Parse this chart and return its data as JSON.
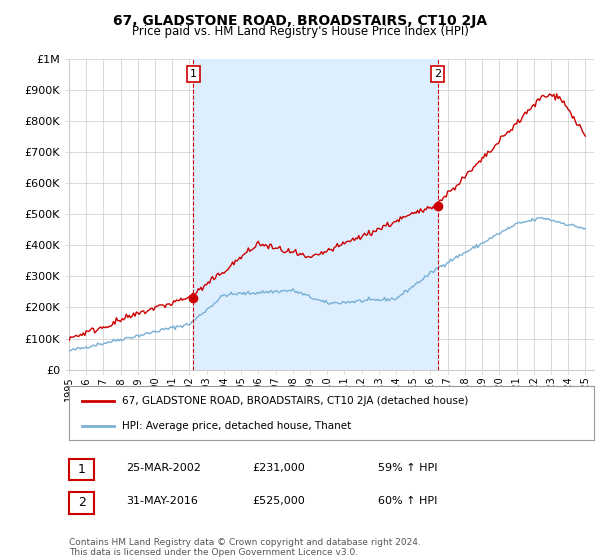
{
  "title": "67, GLADSTONE ROAD, BROADSTAIRS, CT10 2JA",
  "subtitle": "Price paid vs. HM Land Registry's House Price Index (HPI)",
  "x_start_year": 1995,
  "x_end_year": 2025,
  "ylim": [
    0,
    1000000
  ],
  "yticks": [
    0,
    100000,
    200000,
    300000,
    400000,
    500000,
    600000,
    700000,
    800000,
    900000,
    1000000
  ],
  "ytick_labels": [
    "£0",
    "£100K",
    "£200K",
    "£300K",
    "£400K",
    "£500K",
    "£600K",
    "£700K",
    "£800K",
    "£900K",
    "£1M"
  ],
  "sale1_date": 2002.23,
  "sale1_price": 231000,
  "sale1_label": "1",
  "sale2_date": 2016.42,
  "sale2_price": 525000,
  "sale2_label": "2",
  "line_color_price": "#cc0000",
  "line_color_hpi": "#7ab0d4",
  "vline_color": "#cc0000",
  "shade_color": "#ddeeff",
  "grid_color": "#cccccc",
  "legend_label_price": "67, GLADSTONE ROAD, BROADSTAIRS, CT10 2JA (detached house)",
  "legend_label_hpi": "HPI: Average price, detached house, Thanet",
  "table_row1": [
    "1",
    "25-MAR-2002",
    "£231,000",
    "59% ↑ HPI"
  ],
  "table_row2": [
    "2",
    "31-MAY-2016",
    "£525,000",
    "60% ↑ HPI"
  ],
  "footer": "Contains HM Land Registry data © Crown copyright and database right 2024.\nThis data is licensed under the Open Government Licence v3.0.",
  "background_color": "#ffffff"
}
